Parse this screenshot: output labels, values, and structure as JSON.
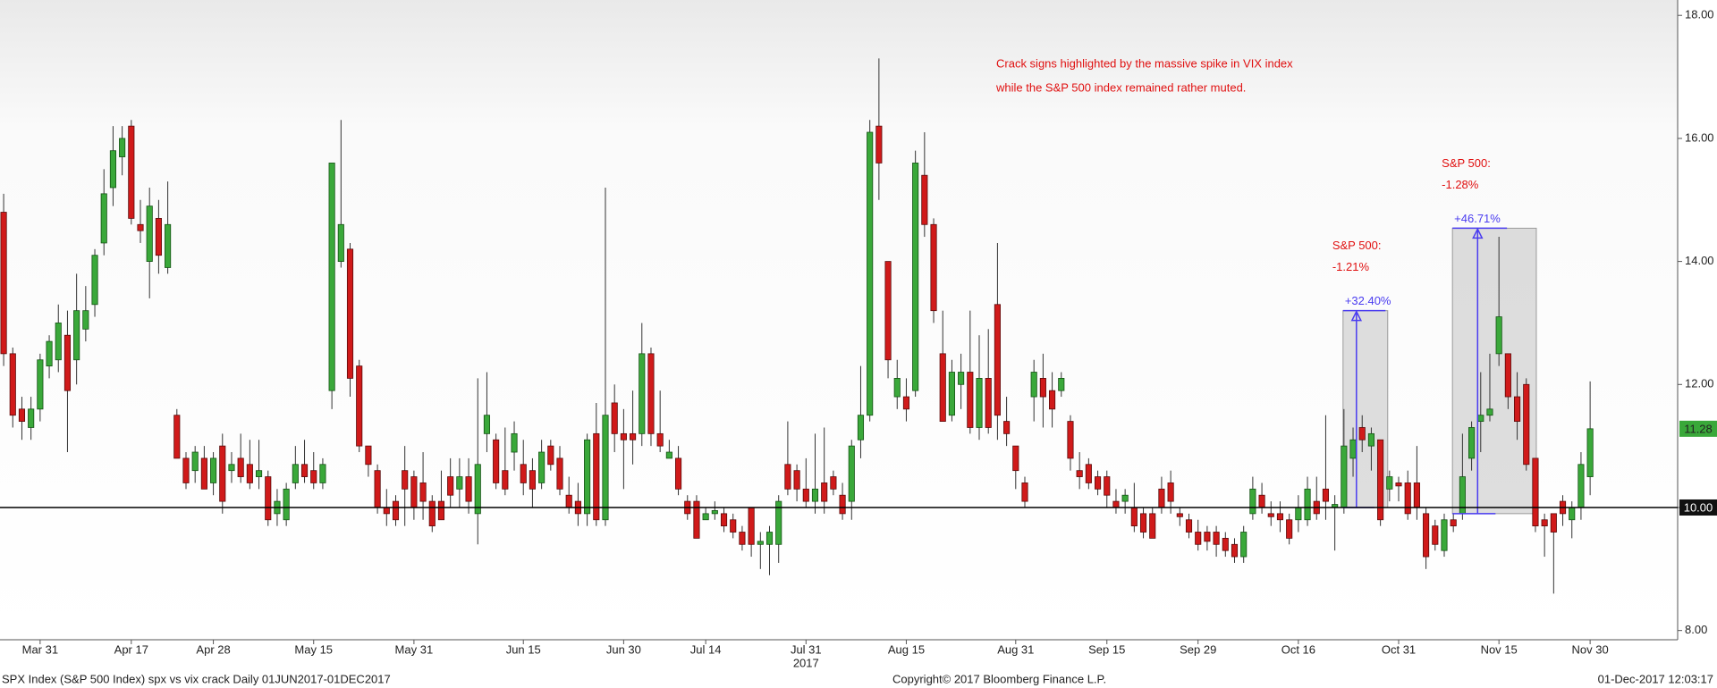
{
  "chart_data": {
    "type": "candlestick",
    "open": [
      14.8,
      12.5,
      11.6,
      11.3,
      11.6,
      12.3,
      12.4,
      12.8,
      12.4,
      12.9,
      13.3,
      14.3,
      15.2,
      15.7,
      16.2,
      14.6,
      14.0,
      14.7,
      13.9,
      11.5,
      10.8,
      10.6,
      10.8,
      10.4,
      11.0,
      10.6,
      10.8,
      10.7,
      10.5,
      10.5,
      9.9,
      9.8,
      10.4,
      10.7,
      10.6,
      10.4,
      11.9,
      14.0,
      14.2,
      12.3,
      11.0,
      10.6,
      10.0,
      10.1,
      10.6,
      10.5,
      10.4,
      10.1,
      10.1,
      10.5,
      10.3,
      10.5,
      9.9,
      11.2,
      11.1,
      10.6,
      10.9,
      10.7,
      10.6,
      10.4,
      11.0,
      10.8,
      10.2,
      10.1,
      9.9,
      11.2,
      9.8,
      11.7,
      11.2,
      11.2,
      11.2,
      12.5,
      11.2,
      10.8,
      10.8,
      10.1,
      10.1,
      9.8,
      9.9,
      9.9,
      9.8,
      9.6,
      10.0,
      9.4,
      9.4,
      9.4,
      10.7,
      10.6,
      10.3,
      10.1,
      10.4,
      10.5,
      10.2,
      10.1,
      11.1,
      11.5,
      16.2,
      14.0,
      11.8,
      11.8,
      11.9,
      15.4,
      14.6,
      12.5,
      11.5,
      12.0,
      12.2,
      11.3,
      12.1,
      13.3,
      11.4,
      11.0,
      10.4,
      11.8,
      12.1,
      11.9,
      11.9,
      11.4,
      10.6,
      10.7,
      10.5,
      10.5,
      10.1,
      10.1,
      10.0,
      9.9,
      9.9,
      10.3,
      10.4,
      9.9,
      9.8,
      9.6,
      9.6,
      9.6,
      9.5,
      9.4,
      9.2,
      9.9,
      10.2,
      9.9,
      9.9,
      9.8,
      9.8,
      9.8,
      10.1,
      10.3,
      10.0,
      10.0,
      10.8,
      11.3,
      11.0,
      11.1,
      10.3,
      10.4,
      10.4,
      10.4,
      9.9,
      9.7,
      9.3,
      9.8,
      9.9,
      10.8,
      11.4,
      11.5,
      12.5,
      12.5,
      11.8,
      12.0,
      10.8,
      9.8,
      9.9,
      10.1,
      9.8,
      10.0,
      10.5
    ],
    "high": [
      15.1,
      12.6,
      11.8,
      11.8,
      12.5,
      12.8,
      13.3,
      13.2,
      13.8,
      13.6,
      14.2,
      15.5,
      16.2,
      16.2,
      16.3,
      15.0,
      15.2,
      15.0,
      15.3,
      11.6,
      10.9,
      11.0,
      11.0,
      10.9,
      11.2,
      10.9,
      11.2,
      11.1,
      11.1,
      10.6,
      10.3,
      10.4,
      11.0,
      11.1,
      10.9,
      10.8,
      15.6,
      16.3,
      14.3,
      12.4,
      11.0,
      10.7,
      10.3,
      10.2,
      11.0,
      10.6,
      10.9,
      10.2,
      10.6,
      10.8,
      10.8,
      10.8,
      12.1,
      12.2,
      11.2,
      11.3,
      11.4,
      11.1,
      10.8,
      11.1,
      11.1,
      11.0,
      10.5,
      10.4,
      11.2,
      11.7,
      15.2,
      12.0,
      11.6,
      11.9,
      13.0,
      12.6,
      11.9,
      11.1,
      11.0,
      10.2,
      10.2,
      10.0,
      10.1,
      10.0,
      9.9,
      9.7,
      10.0,
      9.6,
      9.7,
      10.2,
      11.4,
      10.7,
      10.8,
      11.2,
      11.3,
      10.6,
      10.4,
      11.1,
      12.3,
      16.3,
      17.3,
      14.0,
      12.4,
      12.1,
      15.8,
      16.1,
      14.7,
      13.2,
      12.4,
      12.5,
      13.2,
      12.8,
      12.9,
      14.3,
      11.8,
      11.0,
      10.5,
      12.4,
      12.5,
      12.2,
      12.2,
      11.5,
      10.9,
      10.8,
      10.6,
      10.6,
      10.3,
      10.3,
      10.4,
      10.0,
      10.0,
      10.5,
      10.6,
      10.0,
      9.9,
      9.8,
      9.7,
      9.7,
      9.6,
      9.5,
      9.7,
      10.5,
      10.4,
      10.1,
      10.1,
      9.9,
      10.2,
      10.5,
      10.5,
      11.5,
      10.2,
      11.6,
      11.3,
      11.5,
      11.3,
      11.1,
      10.6,
      10.5,
      10.6,
      11.0,
      10.0,
      9.8,
      9.9,
      9.9,
      11.2,
      11.4,
      12.2,
      12.5,
      14.4,
      12.5,
      12.2,
      12.1,
      10.8,
      9.9,
      9.9,
      10.2,
      10.1,
      10.9,
      12.05
    ],
    "low": [
      12.3,
      11.3,
      11.1,
      11.1,
      11.4,
      12.1,
      12.2,
      10.9,
      12.0,
      12.7,
      13.1,
      14.1,
      14.9,
      15.4,
      14.6,
      14.3,
      13.4,
      13.8,
      13.8,
      10.8,
      10.3,
      10.4,
      10.3,
      10.2,
      9.9,
      10.4,
      10.4,
      10.3,
      10.3,
      9.7,
      9.7,
      9.7,
      10.3,
      10.4,
      10.3,
      10.3,
      11.6,
      13.9,
      11.8,
      10.9,
      10.5,
      9.9,
      9.7,
      9.7,
      9.7,
      9.8,
      9.8,
      9.6,
      9.8,
      10.0,
      10.0,
      9.9,
      9.4,
      10.9,
      10.3,
      10.2,
      10.6,
      10.2,
      10.0,
      10.3,
      10.6,
      10.2,
      9.9,
      9.7,
      9.7,
      9.7,
      9.7,
      10.9,
      10.3,
      10.7,
      11.0,
      11.0,
      10.9,
      10.8,
      10.2,
      9.8,
      9.5,
      9.8,
      9.8,
      9.6,
      9.5,
      9.3,
      9.2,
      9.0,
      8.9,
      9.1,
      10.2,
      10.1,
      10.0,
      9.9,
      9.9,
      10.2,
      9.8,
      9.8,
      10.8,
      11.4,
      15.0,
      12.1,
      11.6,
      11.4,
      11.8,
      14.4,
      13.0,
      11.4,
      11.4,
      11.6,
      11.2,
      11.1,
      11.2,
      11.1,
      11.0,
      10.3,
      10.0,
      11.4,
      11.3,
      11.3,
      11.8,
      10.6,
      10.3,
      10.3,
      10.2,
      10.0,
      9.9,
      9.9,
      9.6,
      9.5,
      9.5,
      9.9,
      9.9,
      9.7,
      9.5,
      9.3,
      9.3,
      9.2,
      9.2,
      9.1,
      9.1,
      9.8,
      9.9,
      9.7,
      9.6,
      9.4,
      9.6,
      9.7,
      9.8,
      9.8,
      9.3,
      9.9,
      10.5,
      10.9,
      10.6,
      9.7,
      10.1,
      10.1,
      9.8,
      9.8,
      9.0,
      9.3,
      9.2,
      9.6,
      9.8,
      10.6,
      10.9,
      11.4,
      12.3,
      11.6,
      11.1,
      10.6,
      9.6,
      9.2,
      8.6,
      9.7,
      9.5,
      9.8,
      10.2
    ],
    "close": [
      12.5,
      11.5,
      11.4,
      11.6,
      12.4,
      12.7,
      13.0,
      11.9,
      13.2,
      13.2,
      14.1,
      15.1,
      15.8,
      16.0,
      14.7,
      14.5,
      14.9,
      14.1,
      14.6,
      10.8,
      10.4,
      10.9,
      10.3,
      10.8,
      10.1,
      10.7,
      10.5,
      10.4,
      10.6,
      9.8,
      10.1,
      10.3,
      10.7,
      10.5,
      10.4,
      10.7,
      15.6,
      14.6,
      12.1,
      11.0,
      10.7,
      10.0,
      9.9,
      9.8,
      10.3,
      10.0,
      10.1,
      9.7,
      9.8,
      10.2,
      10.5,
      10.1,
      10.7,
      11.5,
      10.4,
      10.3,
      11.2,
      10.4,
      10.3,
      10.9,
      10.7,
      10.3,
      10.0,
      9.9,
      11.1,
      9.8,
      11.5,
      11.2,
      11.1,
      11.1,
      12.5,
      11.2,
      11.0,
      10.9,
      10.3,
      9.9,
      9.5,
      9.9,
      9.95,
      9.7,
      9.6,
      9.4,
      9.4,
      9.45,
      9.6,
      10.1,
      10.3,
      10.3,
      10.1,
      10.3,
      10.1,
      10.3,
      9.9,
      11.0,
      11.5,
      16.1,
      15.6,
      12.4,
      12.1,
      11.6,
      15.6,
      14.6,
      13.2,
      11.4,
      12.2,
      12.2,
      11.3,
      12.1,
      11.3,
      11.5,
      11.2,
      10.6,
      10.1,
      12.2,
      11.8,
      11.6,
      12.1,
      10.8,
      10.5,
      10.4,
      10.3,
      10.2,
      10.0,
      10.2,
      9.7,
      9.6,
      9.5,
      10.0,
      10.1,
      9.85,
      9.6,
      9.4,
      9.45,
      9.4,
      9.3,
      9.2,
      9.6,
      10.3,
      10.0,
      9.85,
      9.8,
      9.5,
      10.0,
      10.3,
      9.9,
      10.1,
      10.05,
      11.0,
      11.1,
      11.1,
      11.2,
      9.8,
      10.5,
      10.35,
      9.9,
      10.0,
      9.2,
      9.4,
      9.8,
      9.7,
      10.5,
      11.3,
      11.5,
      11.6,
      13.1,
      11.8,
      11.4,
      10.7,
      9.7,
      9.7,
      9.6,
      9.9,
      10.0,
      10.7,
      11.28
    ],
    "up_color": "#3aa83a",
    "down_color": "#d01a1a",
    "xlim": [
      -0.4,
      183.6
    ],
    "xticks": [
      {
        "value": 4,
        "label": "Mar 31"
      },
      {
        "value": 14,
        "label": "Apr 17"
      },
      {
        "value": 23,
        "label": "Apr 28"
      },
      {
        "value": 34,
        "label": "May 15"
      },
      {
        "value": 45,
        "label": "May 31"
      },
      {
        "value": 57,
        "label": "Jun 15"
      },
      {
        "value": 68,
        "label": "Jun 30"
      },
      {
        "value": 77,
        "label": "Jul 14"
      },
      {
        "value": 88,
        "label": "Jul 31"
      },
      {
        "value": 99,
        "label": "Aug 15"
      },
      {
        "value": 111,
        "label": "Aug 31"
      },
      {
        "value": 121,
        "label": "Sep 15"
      },
      {
        "value": 131,
        "label": "Sep 29"
      },
      {
        "value": 142,
        "label": "Oct 16"
      },
      {
        "value": 153,
        "label": "Oct 31"
      },
      {
        "value": 164,
        "label": "Nov 15"
      },
      {
        "value": 174,
        "label": "Nov 30"
      }
    ],
    "xlabel": "2017",
    "ylim": [
      7.85,
      18.25
    ],
    "yticks": [
      {
        "value": 8,
        "label": "8.00"
      },
      {
        "value": 10,
        "label": "10.00"
      },
      {
        "value": 12,
        "label": "12.00"
      },
      {
        "value": 14,
        "label": "14.00"
      },
      {
        "value": 16,
        "label": "16.00"
      },
      {
        "value": 18,
        "label": "18.00"
      }
    ],
    "reference_line": {
      "value": 10,
      "label": "10.00"
    },
    "last_label": {
      "value": 11.28,
      "label": "11.28"
    },
    "note": [
      "Crack signs highlighted by the massive spike in VIX index",
      "while the S&P 500 index remained rather muted."
    ],
    "callouts": [
      {
        "label": "+32.40%",
        "x0": 146.9,
        "x1": 151.8,
        "y0": 10.0,
        "y1": 13.2,
        "note": [
          "S&P 500:",
          "-1.21%"
        ]
      },
      {
        "label": "+46.71%",
        "x0": 158.9,
        "x1": 168.1,
        "y0": 9.9,
        "y1": 14.54,
        "note": [
          "S&P 500:",
          "-1.28%"
        ]
      }
    ],
    "footer": {
      "left": "SPX Index (S&P 500 Index) spx vs vix crack  Daily 01JUN2017-01DEC2017",
      "center": "Copyright© 2017 Bloomberg Finance L.P.",
      "right": "01-Dec-2017 12:03:17"
    }
  }
}
